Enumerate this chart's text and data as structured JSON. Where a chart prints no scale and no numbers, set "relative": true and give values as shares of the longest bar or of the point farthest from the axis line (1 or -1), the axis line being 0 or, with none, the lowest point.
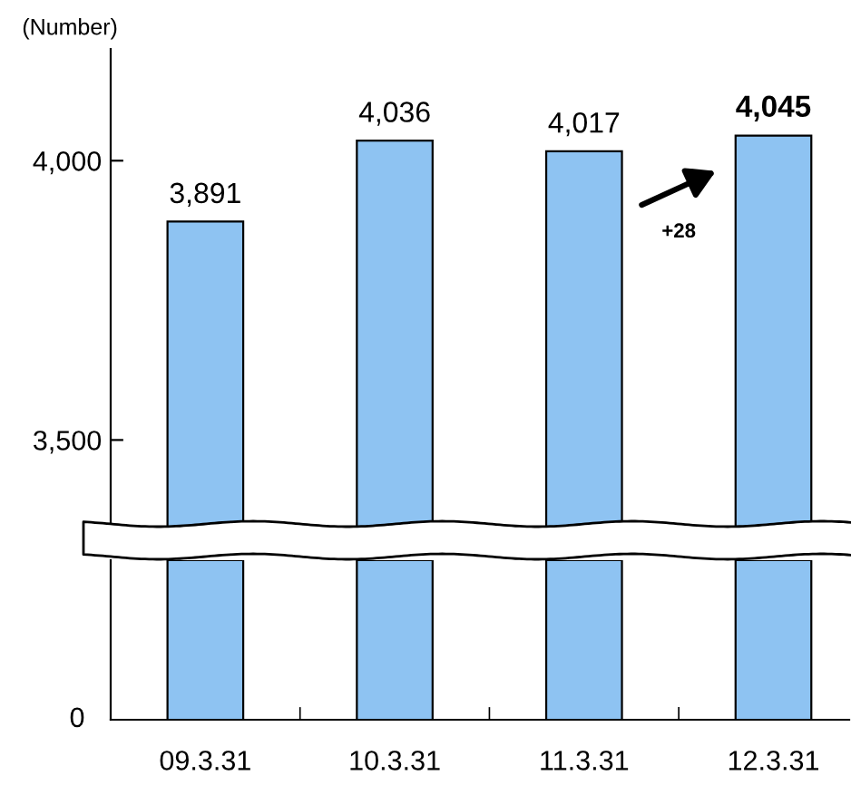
{
  "chart_data": [
    {
      "type": "bar",
      "categories": [
        "09.3.31",
        "10.3.31",
        "11.3.31",
        "12.3.31"
      ],
      "values": [
        3891,
        4036,
        4017,
        4045
      ],
      "color": "#8ec3f2",
      "ylim": [
        3340,
        4200
      ],
      "yticks": [
        {
          "value": 3500,
          "label": "3,500"
        },
        {
          "value": 4000,
          "label": "4,000"
        }
      ],
      "tick_labels": "y",
      "value_labels": [
        "3,891",
        "4,036",
        "4,017",
        "4,045"
      ],
      "annotations": [
        "(Number)",
        "+28"
      ]
    },
    {
      "type": "bar",
      "categories": [
        "09.3.31",
        "10.3.31",
        "11.3.31",
        "12.3.31"
      ],
      "values": [
        1,
        1,
        1,
        1
      ],
      "color": "#8ec3f2",
      "relative": true,
      "annotations": [
        "0"
      ]
    }
  ]
}
